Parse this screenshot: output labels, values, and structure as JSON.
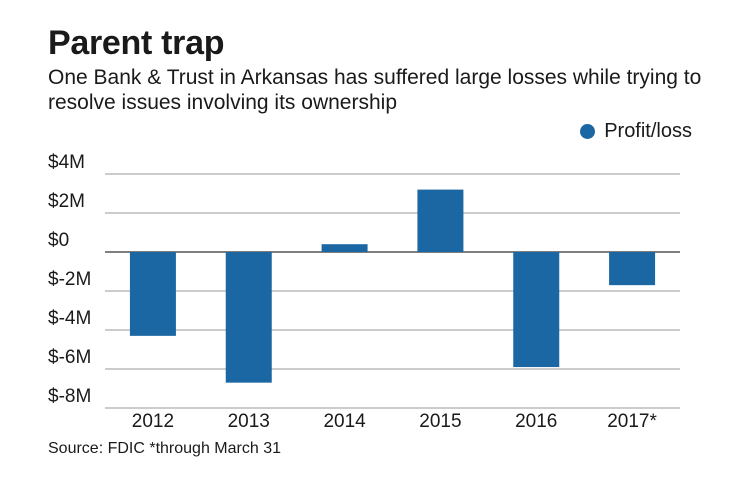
{
  "title": "Parent trap",
  "subtitle": "One Bank & Trust in Arkansas has suffered large losses while trying to resolve issues involving its ownership",
  "source": "Source: FDIC *through March 31",
  "colors": {
    "bar": "#1b67a3",
    "grid": "#9a9a9a",
    "axis": "#555555"
  },
  "chart_data": {
    "type": "bar",
    "categories": [
      "2012",
      "2013",
      "2014",
      "2015",
      "2016",
      "2017*"
    ],
    "series": [
      {
        "name": "Profit/loss",
        "values": [
          -4.3,
          -6.7,
          0.4,
          3.2,
          -5.9,
          -1.7
        ]
      }
    ],
    "ylabel": "",
    "xlabel": "",
    "unit": "$M",
    "ylim": [
      -8,
      4
    ],
    "yticks": [
      4,
      2,
      0,
      -2,
      -4,
      -6,
      -8
    ],
    "ytick_labels": [
      "$4M",
      "$2M",
      "$0",
      "$-2M",
      "$-4M",
      "$-6M",
      "$-8M"
    ],
    "legend": "top-right",
    "grid": true
  }
}
